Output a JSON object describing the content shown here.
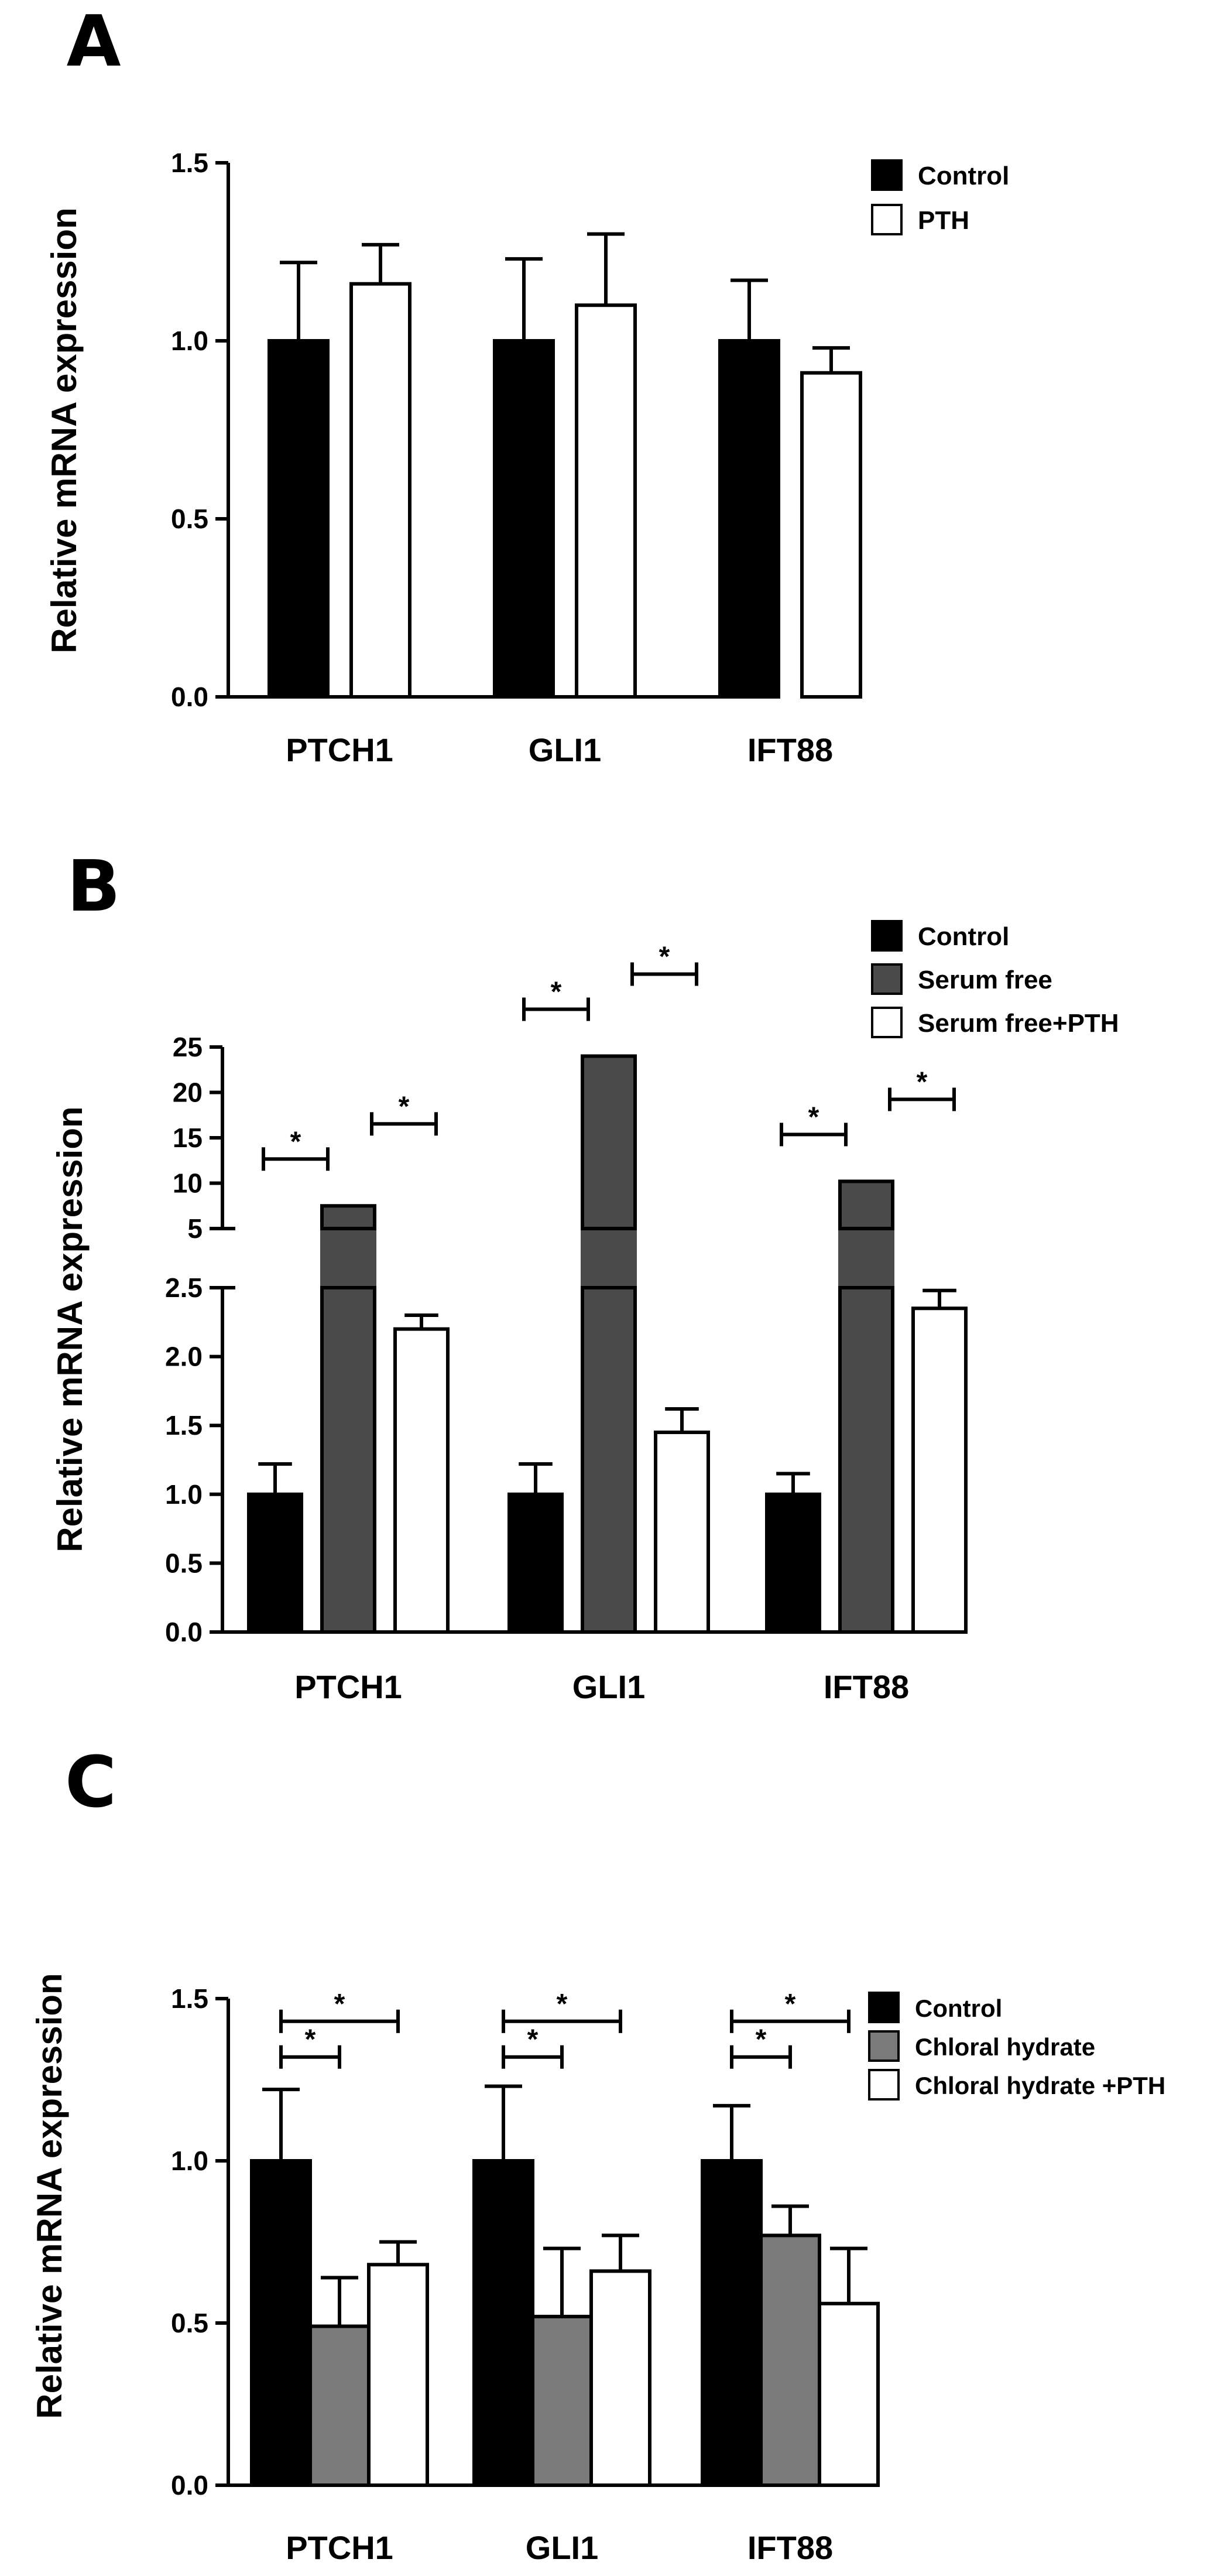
{
  "chart_data": [
    {
      "panel_label": "A",
      "type": "bar",
      "categories": [
        "PTCH1",
        "GLI1",
        "IFT88"
      ],
      "ylabel": "Relative mRNA expression",
      "xlabel": "",
      "ylim": [
        0,
        1.5
      ],
      "yticks": [
        "0.0",
        "0.5",
        "1.0",
        "1.5"
      ],
      "legend_position": "top-right",
      "series": [
        {
          "name": "Control",
          "color": "#000000",
          "values": [
            1.0,
            1.0,
            1.0
          ],
          "errors": [
            0.22,
            0.23,
            0.17
          ]
        },
        {
          "name": "PTH",
          "color": "#ffffff",
          "values": [
            1.16,
            1.1,
            0.91
          ],
          "errors": [
            0.11,
            0.2,
            0.07
          ]
        }
      ],
      "significance": []
    },
    {
      "panel_label": "B",
      "type": "bar",
      "categories": [
        "PTCH1",
        "GLI1",
        "IFT88"
      ],
      "ylabel": "Relative mRNA expression",
      "xlabel": "",
      "axis_break": true,
      "lower_ylim": [
        0,
        2.5
      ],
      "lower_yticks": [
        "0.0",
        "0.5",
        "1.0",
        "1.5",
        "2.0",
        "2.5"
      ],
      "upper_ylim": [
        5,
        25
      ],
      "upper_yticks": [
        "5",
        "10",
        "15",
        "20",
        "25"
      ],
      "legend_position": "top-right",
      "series": [
        {
          "name": "Control",
          "color": "#000000",
          "values": [
            1.0,
            1.0,
            1.0
          ],
          "errors": [
            0.22,
            0.22,
            0.15
          ]
        },
        {
          "name": "Serum free",
          "color": "#4a4a4a",
          "values": [
            7.5,
            24.0,
            10.2
          ],
          "errors": [
            0,
            0,
            0
          ]
        },
        {
          "name": "Serum free+PTH",
          "color": "#ffffff",
          "values": [
            2.2,
            1.45,
            2.35
          ],
          "errors": [
            0.1,
            0.17,
            0.13
          ]
        }
      ],
      "significance": [
        {
          "category": "PTCH1",
          "pair": [
            "Control",
            "Serum free"
          ],
          "label": "*"
        },
        {
          "category": "PTCH1",
          "pair": [
            "Serum free",
            "Serum free+PTH"
          ],
          "label": "*"
        },
        {
          "category": "GLI1",
          "pair": [
            "Control",
            "Serum free"
          ],
          "label": "*"
        },
        {
          "category": "GLI1",
          "pair": [
            "Serum free",
            "Serum free+PTH"
          ],
          "label": "*"
        },
        {
          "category": "IFT88",
          "pair": [
            "Control",
            "Serum free"
          ],
          "label": "*"
        },
        {
          "category": "IFT88",
          "pair": [
            "Serum free",
            "Serum free+PTH"
          ],
          "label": "*"
        }
      ]
    },
    {
      "panel_label": "C",
      "type": "bar",
      "categories": [
        "PTCH1",
        "GLI1",
        "IFT88"
      ],
      "ylabel": "Relative mRNA expression",
      "xlabel": "",
      "ylim": [
        0,
        1.5
      ],
      "yticks": [
        "0.0",
        "0.5",
        "1.0",
        "1.5"
      ],
      "legend_position": "right",
      "series": [
        {
          "name": "Control",
          "color": "#000000",
          "values": [
            1.0,
            1.0,
            1.0
          ],
          "errors": [
            0.22,
            0.23,
            0.17
          ]
        },
        {
          "name": "Chloral hydrate",
          "color": "#7a7a7a",
          "values": [
            0.49,
            0.52,
            0.77
          ],
          "errors": [
            0.15,
            0.21,
            0.09
          ]
        },
        {
          "name": "Chloral hydrate +PTH",
          "color": "#ffffff",
          "values": [
            0.68,
            0.66,
            0.56
          ],
          "errors": [
            0.07,
            0.11,
            0.17
          ]
        }
      ],
      "significance": [
        {
          "category": "PTCH1",
          "pair": [
            "Control",
            "Chloral hydrate"
          ],
          "label": "*"
        },
        {
          "category": "PTCH1",
          "pair": [
            "Control",
            "Chloral hydrate +PTH"
          ],
          "label": "*"
        },
        {
          "category": "GLI1",
          "pair": [
            "Control",
            "Chloral hydrate"
          ],
          "label": "*"
        },
        {
          "category": "GLI1",
          "pair": [
            "Control",
            "Chloral hydrate +PTH"
          ],
          "label": "*"
        },
        {
          "category": "IFT88",
          "pair": [
            "Control",
            "Chloral hydrate"
          ],
          "label": "*"
        },
        {
          "category": "IFT88",
          "pair": [
            "Control",
            "Chloral hydrate +PTH"
          ],
          "label": "*"
        }
      ]
    }
  ]
}
